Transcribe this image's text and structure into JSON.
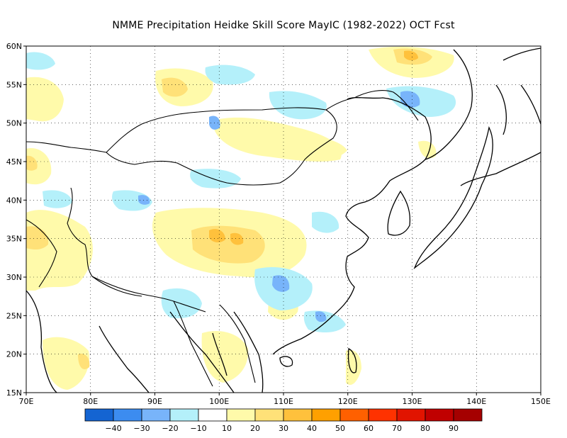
{
  "title": "NMME  Precipitation Heidke Skill Score MayIC (1982-2022) OCT Fcst",
  "map": {
    "lon_range": [
      70,
      150
    ],
    "lat_range": [
      15,
      60
    ],
    "lat_labels": [
      "15N",
      "20N",
      "25N",
      "30N",
      "35N",
      "40N",
      "45N",
      "50N",
      "55N",
      "60N"
    ],
    "lon_labels": [
      "70E",
      "80E",
      "90E",
      "100E",
      "110E",
      "120E",
      "130E",
      "140E",
      "150E"
    ],
    "gridlines": "dotted"
  },
  "colorbar": {
    "colors": [
      "#1464d2",
      "#3c8cf0",
      "#78b4fa",
      "#b4f0fa",
      "#ffffff",
      "#fffaaa",
      "#ffe178",
      "#ffc13c",
      "#ffa000",
      "#ff6000",
      "#ff3200",
      "#e11400",
      "#c00000",
      "#a50000"
    ],
    "labels": [
      "-40",
      "-30",
      "-20",
      "-10",
      "10",
      "20",
      "30",
      "40",
      "50",
      "60",
      "70",
      "80",
      "90"
    ]
  }
}
